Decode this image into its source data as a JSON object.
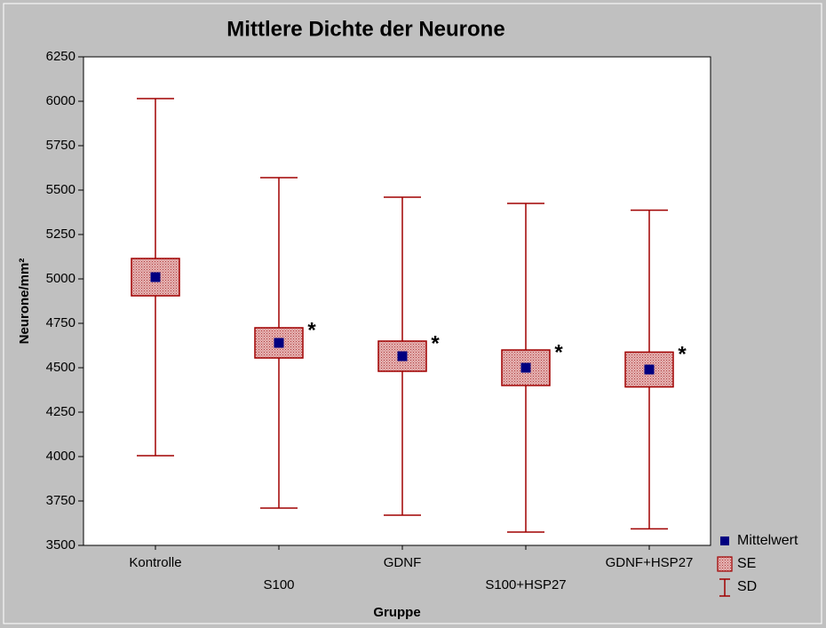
{
  "chart_data": {
    "type": "meanbox",
    "title": "Mittlere Dichte der Neurone",
    "x_label": "Gruppe",
    "y_label": "Neurone/mm²",
    "categories": [
      "Kontrolle",
      "S100",
      "GDNF",
      "S100+HSP27",
      "GDNF+HSP27"
    ],
    "means": [
      5010,
      4640,
      4565,
      4500,
      4490
    ],
    "se": [
      105,
      85,
      85,
      100,
      98
    ],
    "sd": [
      1005,
      930,
      895,
      925,
      897
    ],
    "significance": [
      null,
      "*",
      "*",
      "*",
      "*"
    ],
    "legend": [
      "Mittelwert",
      "SE",
      "SD"
    ],
    "mean_color": "#000080",
    "se_color": "#d98c8c",
    "sd_color": "#a00000",
    "ylim": [
      3500,
      6250
    ],
    "yticks": [
      3500,
      3750,
      4000,
      4250,
      4500,
      4750,
      5000,
      5250,
      5500,
      5750,
      6000,
      6250
    ]
  }
}
